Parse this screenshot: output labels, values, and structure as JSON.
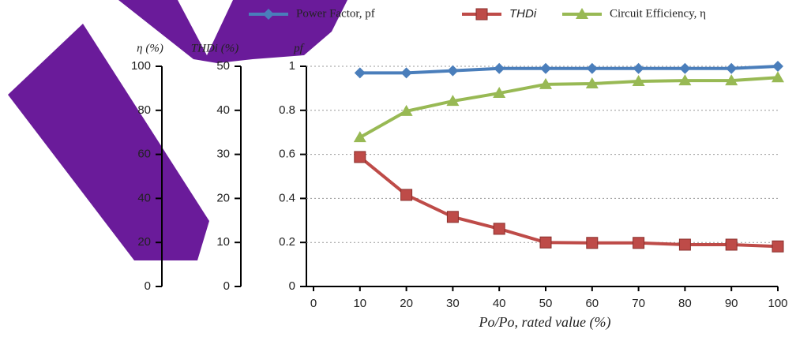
{
  "chart_data": {
    "type": "line",
    "x": [
      10,
      20,
      30,
      40,
      50,
      60,
      70,
      80,
      90,
      100
    ],
    "xlim": [
      0,
      100
    ],
    "xticks": [
      0,
      10,
      20,
      30,
      40,
      50,
      60,
      70,
      80,
      90,
      100
    ],
    "x_label": "Po/Po, rated value (%)",
    "ylim": [
      0,
      1
    ],
    "yticks": [
      0,
      0.2,
      0.4,
      0.6,
      0.8,
      1
    ],
    "y_label": "pf",
    "y2lim": [
      0,
      50
    ],
    "y2ticks": [
      0,
      10,
      20,
      30,
      40,
      50
    ],
    "y2_label": "THDi (%)",
    "y3lim": [
      0,
      100
    ],
    "y3ticks": [
      0,
      20,
      40,
      60,
      80,
      100
    ],
    "y3_label": "η (%)",
    "grid": true,
    "series": [
      {
        "name": "Power Factor, pf",
        "color": "#4a7ebb",
        "marker": "diamond",
        "axis": "y",
        "values": [
          0.97,
          0.97,
          0.98,
          0.99,
          0.99,
          0.99,
          0.99,
          0.99,
          0.99,
          1.0
        ]
      },
      {
        "name": "THDi",
        "color": "#be4b48",
        "marker": "square",
        "axis": "y2",
        "values": [
          29.4,
          20.8,
          15.8,
          13.1,
          10.0,
          9.9,
          9.9,
          9.5,
          9.5,
          9.1
        ]
      },
      {
        "name": "Circuit Efficiency, η",
        "color": "#98b954",
        "marker": "triangle",
        "axis": "y3",
        "values": [
          67.7,
          79.6,
          84.2,
          87.8,
          91.8,
          92.1,
          93.2,
          93.5,
          93.5,
          94.9
        ]
      }
    ]
  }
}
